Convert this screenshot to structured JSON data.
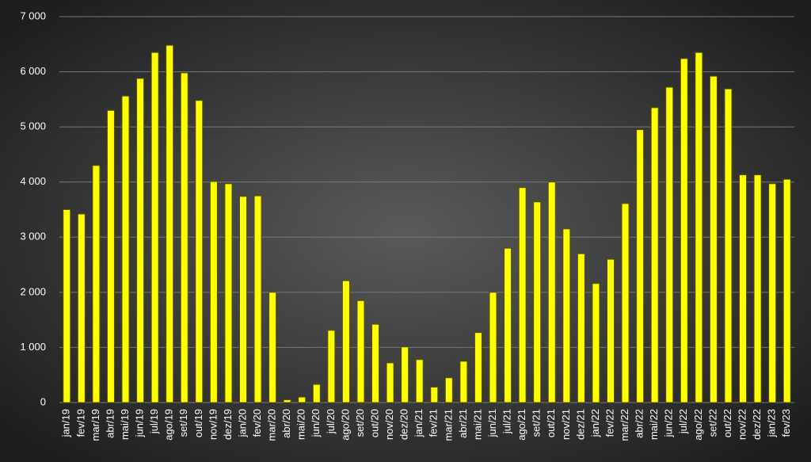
{
  "chart_data": {
    "type": "bar",
    "categories": [
      "jan/19",
      "fev/19",
      "mar/19",
      "abr/19",
      "mai/19",
      "jun/19",
      "jul/19",
      "ago/19",
      "set/19",
      "out/19",
      "nov/19",
      "dez/19",
      "jan/20",
      "fev/20",
      "mar/20",
      "abr/20",
      "mai/20",
      "jun/20",
      "jul/20",
      "ago/20",
      "set/20",
      "out/20",
      "nov/20",
      "dez/20",
      "jan/21",
      "fev/21",
      "mar/21",
      "abr/21",
      "mai/21",
      "jun/21",
      "jul/21",
      "ago/21",
      "set/21",
      "out/21",
      "nov/21",
      "dez/21",
      "jan/22",
      "fev/22",
      "mar/22",
      "abr/22",
      "mai/22",
      "jun/22",
      "jul/22",
      "ago/22",
      "set/22",
      "out/22",
      "nov/22",
      "dez/22",
      "jan/23",
      "fev/23"
    ],
    "values": [
      3500,
      3420,
      4300,
      5300,
      5560,
      5880,
      6350,
      6480,
      5980,
      5480,
      4010,
      3970,
      3740,
      3750,
      2000,
      50,
      100,
      330,
      1310,
      2210,
      1850,
      1420,
      720,
      1010,
      780,
      280,
      450,
      750,
      1270,
      2000,
      2800,
      3900,
      3640,
      4000,
      3150,
      2700,
      2160,
      2600,
      3610,
      4950,
      5350,
      5720,
      6240,
      6350,
      5920,
      5690,
      4130,
      4130,
      3970,
      4050
    ],
    "color": "#ffff00",
    "ylim": [
      0,
      7000
    ],
    "yticks": [
      0,
      {
        "value": 1000,
        "label": "1 000"
      },
      {
        "value": 2000,
        "label": "2 000"
      },
      {
        "value": 3000,
        "label": "3 000"
      },
      {
        "value": 4000,
        "label": "4 000"
      },
      {
        "value": 5000,
        "label": "5 000"
      },
      {
        "value": 6000,
        "label": "6 000"
      },
      {
        "value": 7000,
        "label": "7 000"
      }
    ],
    "grid": true
  }
}
